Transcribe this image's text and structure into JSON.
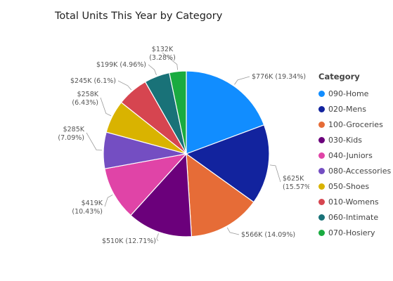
{
  "chart_data": {
    "type": "pie",
    "title": "Total Units This Year by Category",
    "legend_title": "Category",
    "legend_position": "right",
    "slices": [
      {
        "name": "090-Home",
        "value": 776,
        "label_value": "$776K",
        "label_pct": "(19.34%)",
        "color": "#118DFF"
      },
      {
        "name": "020-Mens",
        "value": 625,
        "label_value": "$625K",
        "label_pct": "(15.57%)",
        "color": "#12239E"
      },
      {
        "name": "100-Groceries",
        "value": 566,
        "label_value": "$566K",
        "label_pct": "(14.09%)",
        "color": "#E66C37"
      },
      {
        "name": "030-Kids",
        "value": 510,
        "label_value": "$510K",
        "label_pct": "(12.71%)",
        "color": "#6B007B"
      },
      {
        "name": "040-Juniors",
        "value": 419,
        "label_value": "$419K",
        "label_pct": "(10.43%)",
        "color": "#E044A7"
      },
      {
        "name": "080-Accessories",
        "value": 285,
        "label_value": "$285K",
        "label_pct": "(7.09%)",
        "color": "#744EC2"
      },
      {
        "name": "050-Shoes",
        "value": 258,
        "label_value": "$258K",
        "label_pct": "(6.43%)",
        "color": "#D9B300"
      },
      {
        "name": "010-Womens",
        "value": 245,
        "label_value": "$245K",
        "label_pct": "(6.1%)",
        "color": "#D64550"
      },
      {
        "name": "060-Intimate",
        "value": 199,
        "label_value": "$199K",
        "label_pct": "(4.96%)",
        "color": "#197278"
      },
      {
        "name": "070-Hosiery",
        "value": 132,
        "label_value": "$132K",
        "label_pct": "(3.28%)",
        "color": "#1AAB40"
      }
    ]
  }
}
